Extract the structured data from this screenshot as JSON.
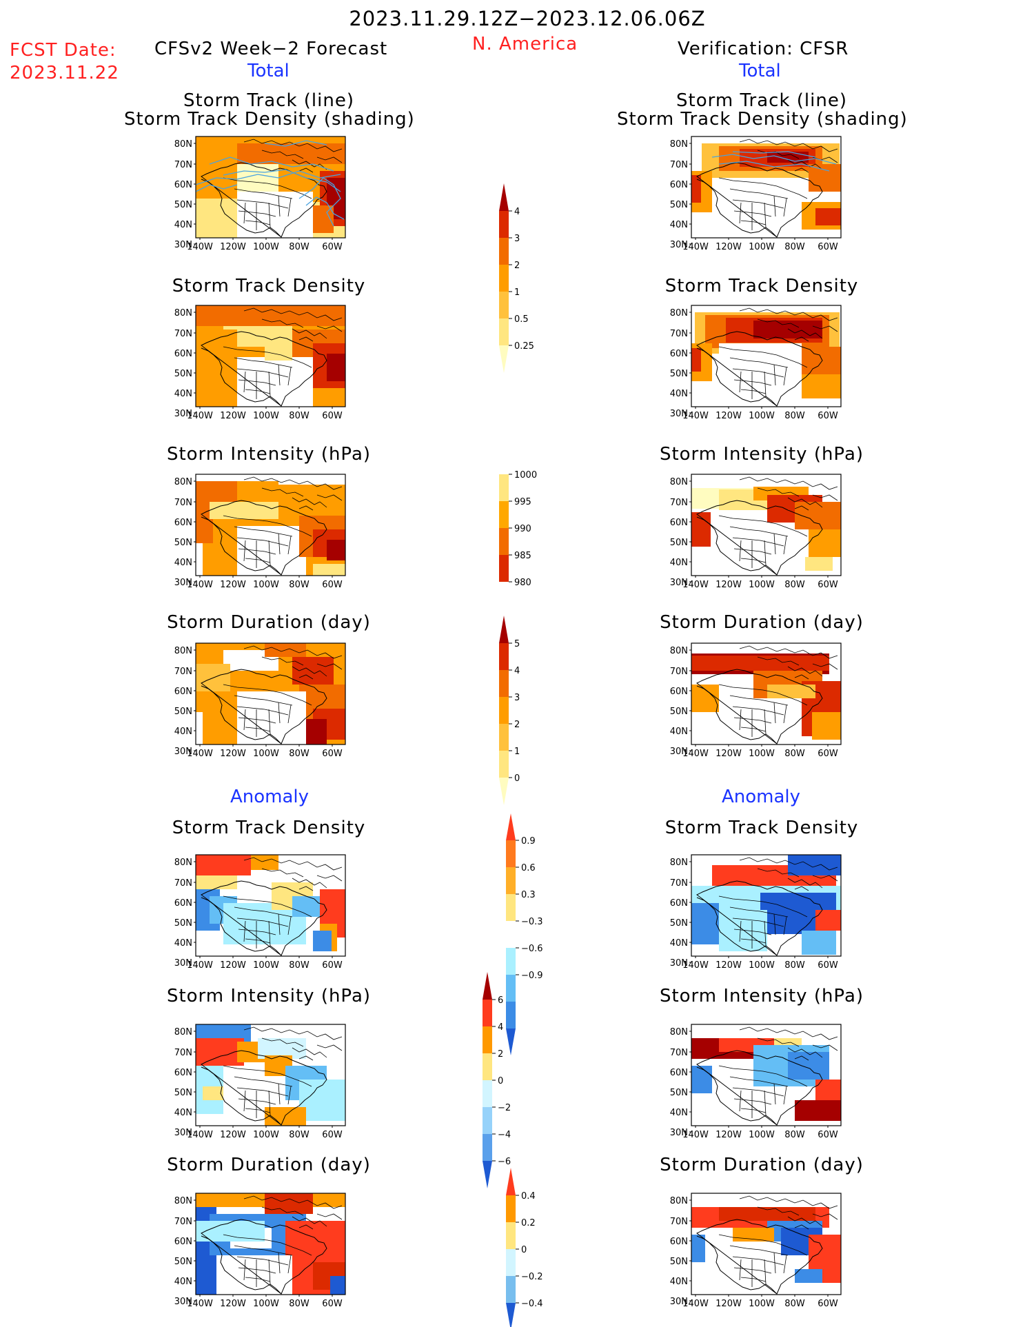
{
  "header": {
    "period": "2023.11.29.12Z−2023.12.06.06Z",
    "region": "N. America",
    "fcst_label": "FCST Date:",
    "fcst_date": "2023.11.22",
    "left_title": "CFSv2 Week−2 Forecast",
    "right_title": "Verification: CFSR",
    "total_label": "Total",
    "anomaly_label": "Anomaly"
  },
  "panel_titles": {
    "track": [
      "Storm Track (line)",
      "Storm Track Density (shading)"
    ],
    "density": "Storm Track Density",
    "intensity": "Storm Intensity (hPa)",
    "duration": "Storm Duration (day)"
  },
  "axes": {
    "lat_labels": [
      "80N",
      "70N",
      "60N",
      "50N",
      "40N",
      "30N"
    ],
    "lon_labels": [
      "140W",
      "120W",
      "100W",
      "80W",
      "60W"
    ]
  },
  "colorbars": [
    {
      "id": "density",
      "labels": [
        "4",
        "3",
        "2",
        "1",
        "0.5",
        "0.25"
      ],
      "colors": [
        "#a50000",
        "#dc2a00",
        "#f26c00",
        "#ff9d00",
        "#ffc13c",
        "#ffe680",
        "#fffcc0"
      ]
    },
    {
      "id": "intensity",
      "labels": [
        "1000",
        "995",
        "990",
        "985",
        "980"
      ],
      "colors": [
        "#fffcc0",
        "#ffe680",
        "#ffa800",
        "#f26c00",
        "#dc2a00",
        "#a50000"
      ]
    },
    {
      "id": "duration",
      "labels": [
        "5",
        "4",
        "3",
        "2",
        "1",
        "0"
      ],
      "colors": [
        "#a50000",
        "#dc2a00",
        "#f26c00",
        "#ff9d00",
        "#ffc13c",
        "#ffe680",
        "#fffcc0"
      ]
    },
    {
      "id": "anom_density",
      "labels": [
        "0.9",
        "0.6",
        "0.3",
        "−0.3",
        "−0.6",
        "−0.9"
      ],
      "colors": [
        "#ff3c1e",
        "#ff7a1e",
        "#ffaf28",
        "#ffe680",
        "#ffffff",
        "#aaf0ff",
        "#64bef5",
        "#3c8ce6",
        "#1e5ad2"
      ]
    },
    {
      "id": "anom_intensity",
      "labels": [
        "6",
        "4",
        "2",
        "0",
        "−2",
        "−4",
        "−6"
      ],
      "colors": [
        "#a50000",
        "#ff3c1e",
        "#ff9900",
        "#ffe680",
        "#d2f5ff",
        "#96d2fa",
        "#5aa0eb",
        "#1e5ad2"
      ]
    },
    {
      "id": "anom_duration",
      "labels": [
        "0.4",
        "0.2",
        "0",
        "−0.2",
        "−0.4"
      ],
      "colors": [
        "#ff3c1e",
        "#ff9900",
        "#ffe680",
        "#d2f5ff",
        "#78beee",
        "#1e5ad2"
      ]
    }
  ],
  "colors": {
    "date_red": "#ff2020",
    "label_blue": "#1a33ff",
    "track_line": "#4aa3df"
  }
}
